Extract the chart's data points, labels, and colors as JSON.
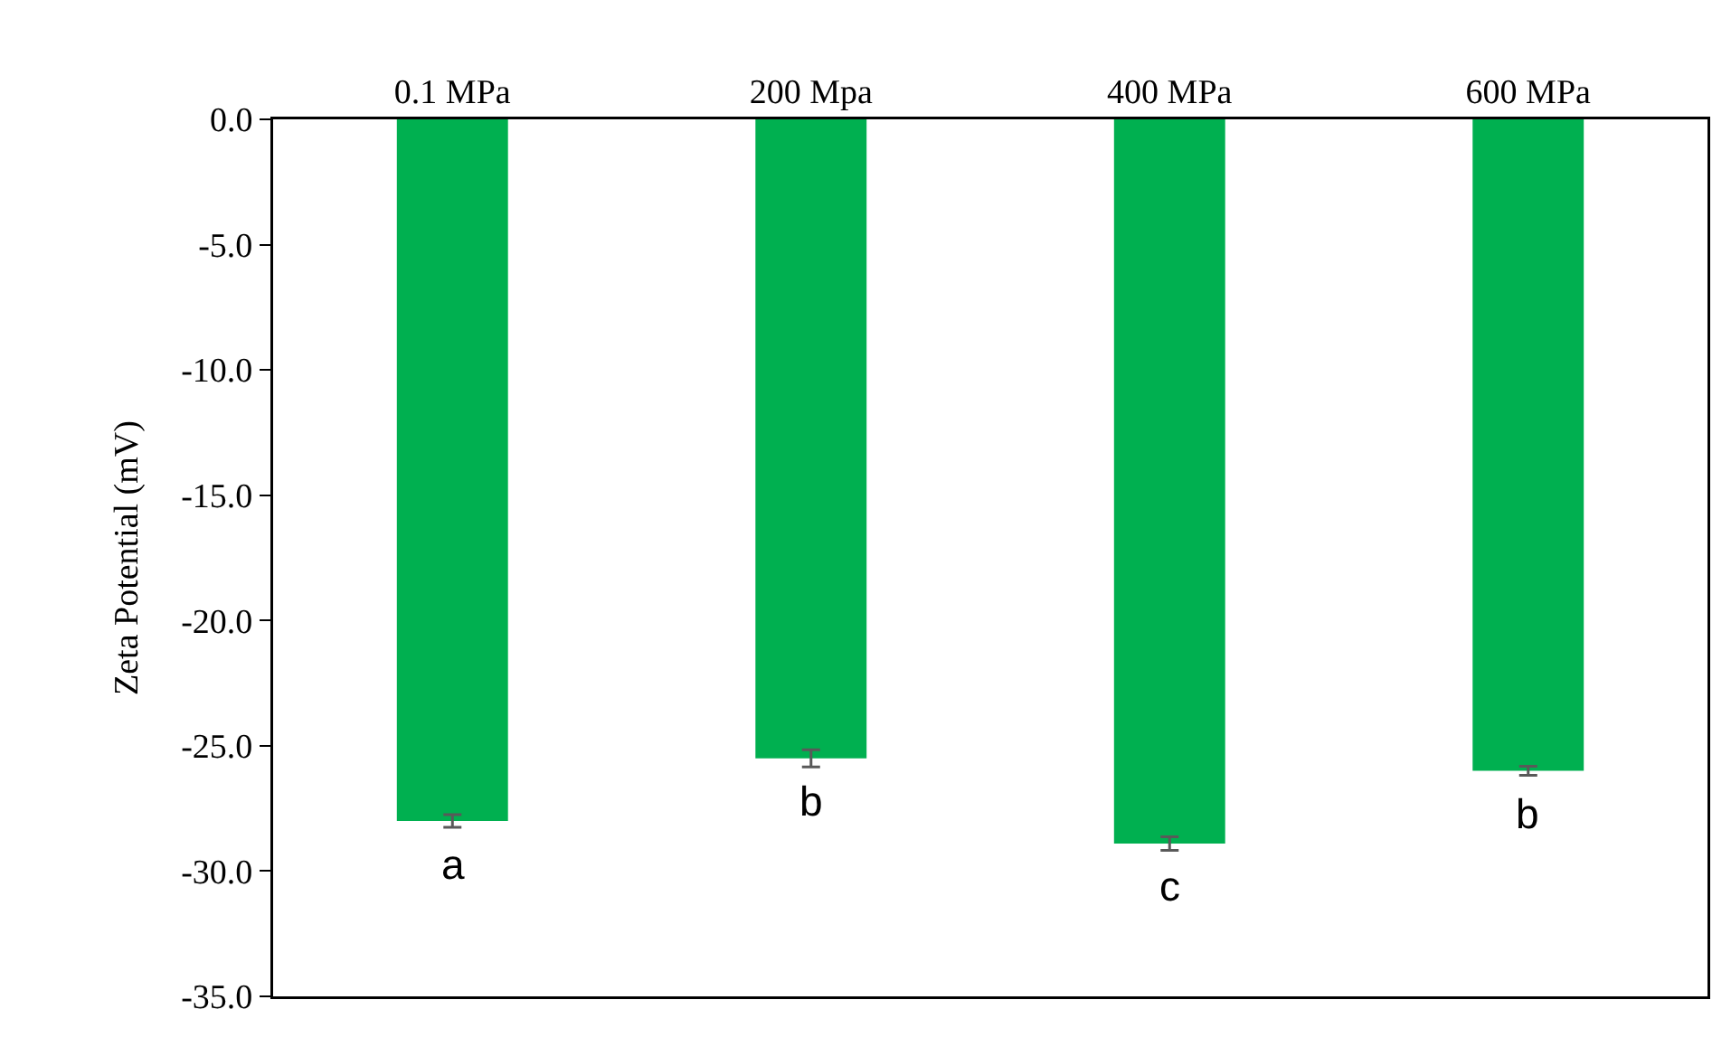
{
  "chart_data": {
    "type": "bar",
    "ylabel": "Zeta Potential (mV)",
    "categories": [
      "0.1 MPa",
      "200 Mpa",
      "400 MPa",
      "600 MPa"
    ],
    "values": [
      -28.0,
      -25.5,
      -28.9,
      -26.0
    ],
    "errors": [
      0.25,
      0.34,
      0.27,
      0.18
    ],
    "color": "#00b050",
    "ylim": [
      -35,
      0
    ],
    "yticks": [
      {
        "value": -35,
        "label": "-35.0"
      },
      {
        "value": -30,
        "label": "-30.0"
      },
      {
        "value": -25,
        "label": "-25.0"
      },
      {
        "value": -20,
        "label": "-20.0"
      },
      {
        "value": -15,
        "label": "-15.0"
      },
      {
        "value": -10,
        "label": "-10.0"
      },
      {
        "value": -5,
        "label": "-5.0"
      },
      {
        "value": 0,
        "label": "0.0"
      }
    ],
    "grid": false,
    "annotations": [
      {
        "text": "a",
        "x": "0.1 MPa",
        "y": -28.0
      },
      {
        "text": "b",
        "x": "200 Mpa",
        "y": -25.5
      },
      {
        "text": "c",
        "x": "400 MPa",
        "y": -28.9
      },
      {
        "text": "b",
        "x": "600 MPa",
        "y": -26.0
      }
    ]
  }
}
